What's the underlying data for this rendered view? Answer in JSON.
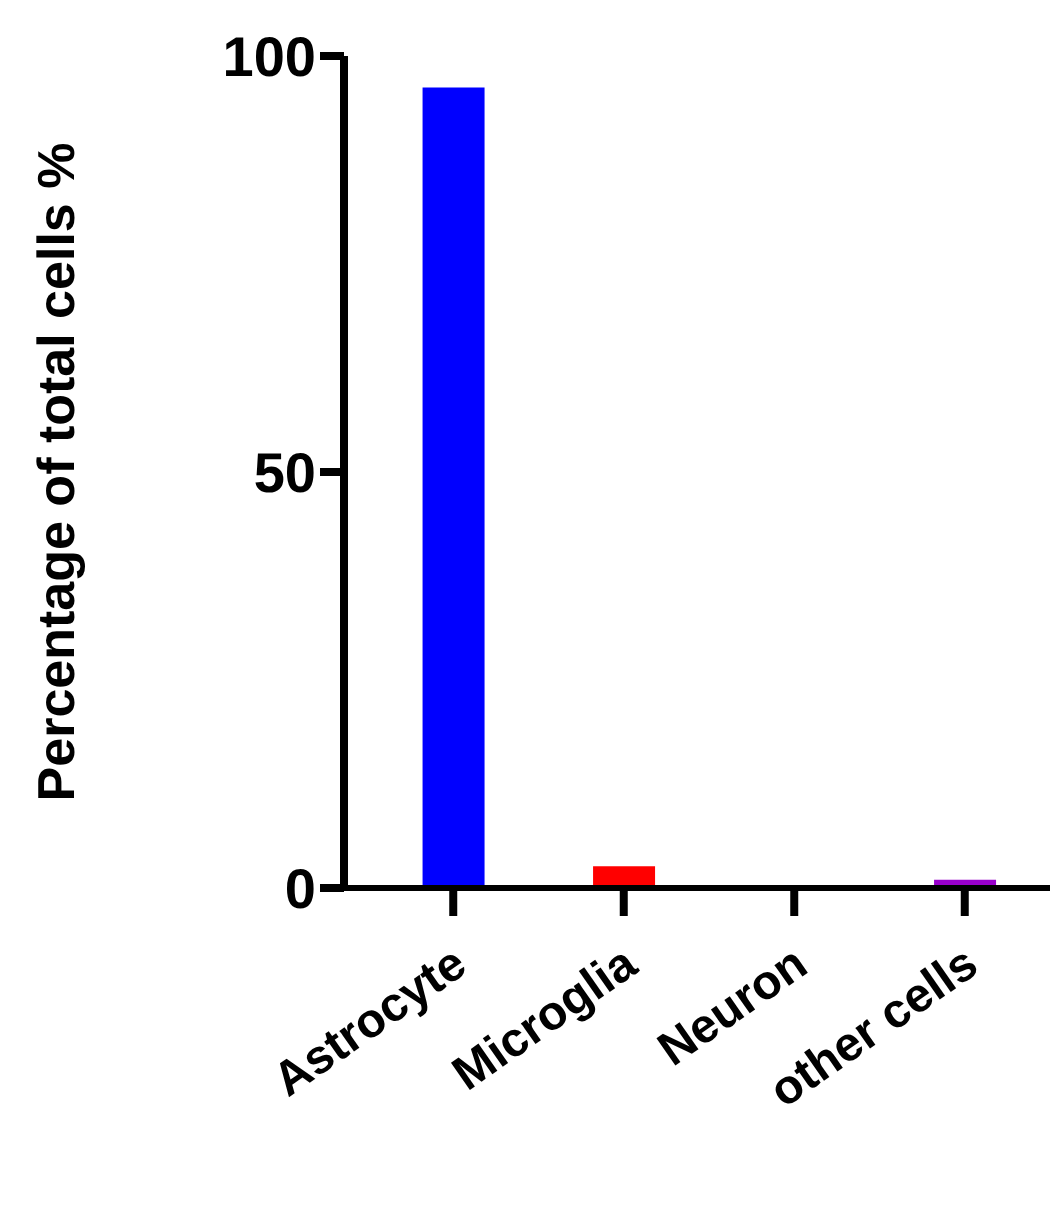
{
  "chart_data": {
    "type": "bar",
    "ylabel": "Percentage of total cells %",
    "categories": [
      "Astrocyte",
      "Microglia",
      "Neuron",
      "other cells"
    ],
    "values": [
      96.2,
      2.6,
      0,
      1
    ],
    "colors": [
      "#0000ff",
      "#ff0000",
      "#00aa00",
      "#9900cc"
    ],
    "ylim": [
      0,
      100
    ],
    "yticks": [
      0,
      50,
      100
    ],
    "grid": false,
    "legend": false
  }
}
